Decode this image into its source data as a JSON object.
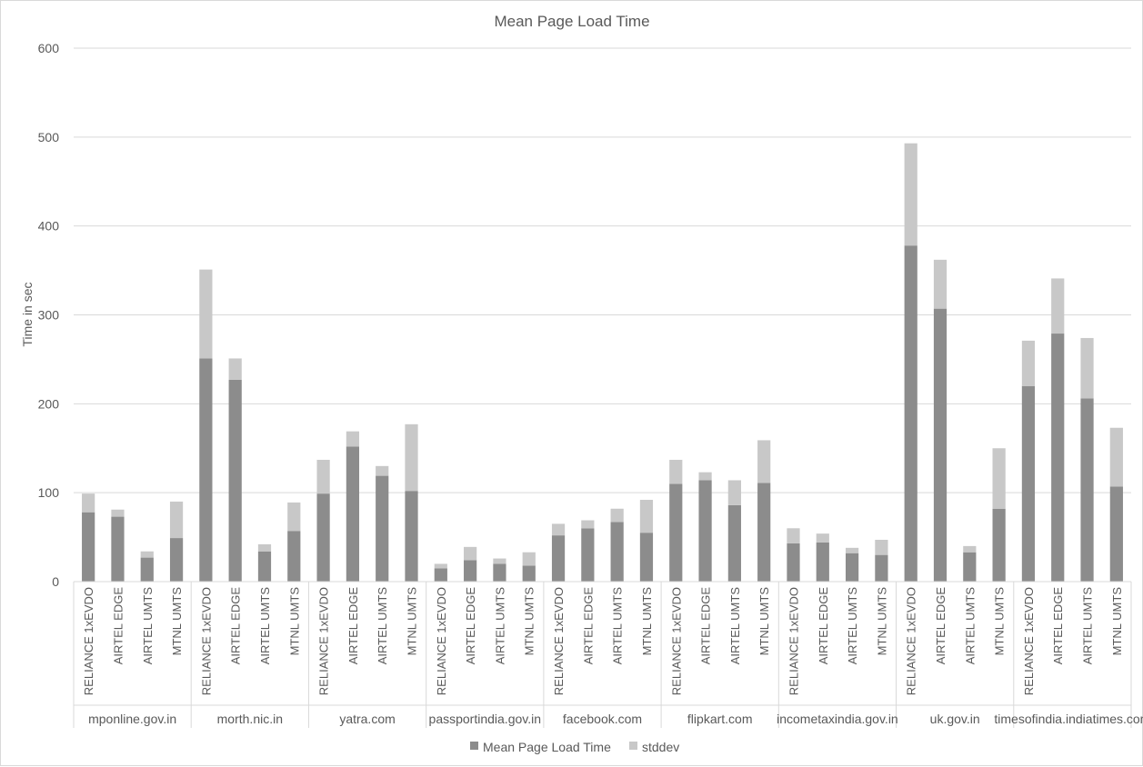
{
  "chart_data": {
    "type": "bar",
    "stacked": true,
    "title": "Mean Page Load Time",
    "xlabel": "",
    "ylabel": "Time in sec",
    "ylim": [
      0,
      600
    ],
    "yticks": [
      0,
      100,
      200,
      300,
      400,
      500,
      600
    ],
    "grid": true,
    "legend_position": "bottom",
    "groups": [
      "mponline.gov.in",
      "morth.nic.in",
      "yatra.com",
      "passportindia.gov.in",
      "facebook.com",
      "flipkart.com",
      "incometaxindia.gov.in",
      "uk.gov.in",
      "timesofindia.indiatimes.com"
    ],
    "subcategories": [
      "RELIANCE 1xEVDO",
      "AIRTEL EDGE",
      "AIRTEL UMTS",
      "MTNL UMTS"
    ],
    "series": [
      {
        "name": "Mean Page Load Time",
        "color": "#8c8c8c",
        "values": [
          [
            78,
            73,
            27,
            49
          ],
          [
            251,
            227,
            34,
            57
          ],
          [
            99,
            152,
            119,
            102
          ],
          [
            15,
            24,
            20,
            18
          ],
          [
            52,
            60,
            67,
            55
          ],
          [
            110,
            114,
            86,
            111
          ],
          [
            43,
            44,
            32,
            30
          ],
          [
            378,
            307,
            33,
            82
          ],
          [
            220,
            279,
            206,
            107
          ]
        ]
      },
      {
        "name": "stddev",
        "color": "#c8c8c8",
        "values": [
          [
            21,
            8,
            7,
            41
          ],
          [
            100,
            24,
            8,
            32
          ],
          [
            38,
            17,
            11,
            75
          ],
          [
            5,
            15,
            6,
            15
          ],
          [
            13,
            9,
            15,
            37
          ],
          [
            27,
            9,
            28,
            48
          ],
          [
            17,
            10,
            6,
            17
          ],
          [
            115,
            55,
            7,
            68
          ],
          [
            51,
            62,
            68,
            66
          ]
        ]
      }
    ]
  }
}
